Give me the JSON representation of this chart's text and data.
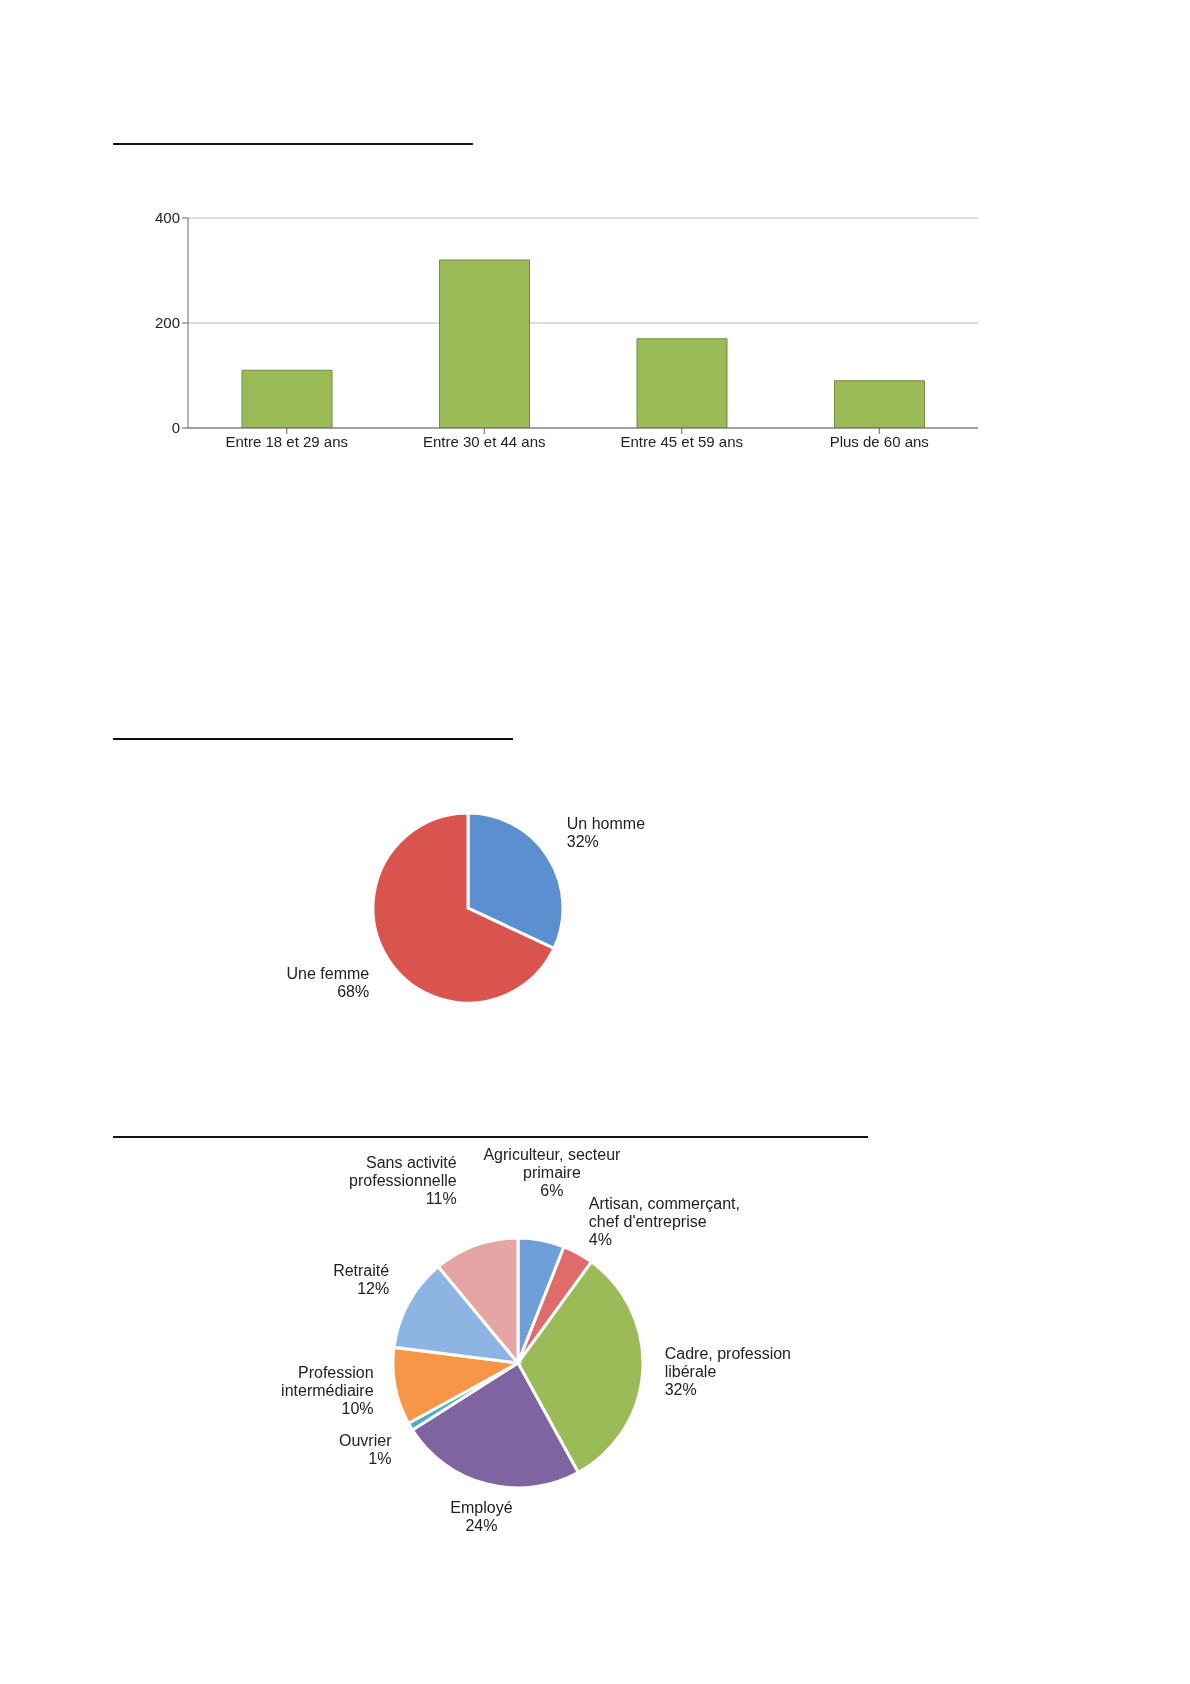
{
  "chart_data": [
    {
      "type": "bar",
      "categories": [
        "Entre 18 et 29 ans",
        "Entre 30 et 44 ans",
        "Entre 45 et 59 ans",
        "Plus de 60 ans"
      ],
      "values": [
        110,
        320,
        170,
        90
      ],
      "color": "#9bbb59",
      "ylim": [
        0,
        400
      ],
      "yticks": [
        0,
        200,
        400
      ],
      "grid": "y",
      "legend": false
    },
    {
      "type": "pie",
      "categories": [
        "Un homme",
        "Une femme"
      ],
      "values": [
        32,
        68
      ],
      "colors": [
        "#5b8fd0",
        "#d9534f"
      ],
      "value_labels": [
        "32%",
        "68%"
      ],
      "legend": false
    },
    {
      "type": "pie",
      "categories": [
        "Agriculteur, secteur primaire",
        "Artisan, commerçant, chef d'entreprise",
        "Cadre, profession libérale",
        "Employé",
        "Ouvrier",
        "Profession intermédiaire",
        "Retraité",
        "Sans activité professionnelle"
      ],
      "values": [
        6,
        4,
        32,
        24,
        1,
        10,
        12,
        11
      ],
      "colors": [
        "#6f9fd8",
        "#e06b6b",
        "#9bbb59",
        "#8064a2",
        "#4bacc6",
        "#f79646",
        "#8eb4e3",
        "#e6a5a5"
      ],
      "value_labels": [
        "6%",
        "4%",
        "32%",
        "24%",
        "1%",
        "10%",
        "12%",
        "11%"
      ],
      "legend": false
    }
  ]
}
